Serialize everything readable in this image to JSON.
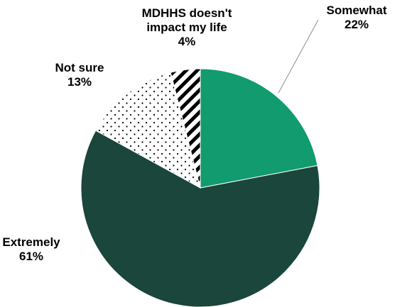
{
  "chart_data": {
    "type": "pie",
    "start_angle_deg": 0,
    "direction": "clockwise",
    "slices": [
      {
        "name": "Somewhat",
        "label": "Somewhat",
        "pct_label": "22%",
        "value": 22,
        "fill": "solid",
        "color": "#119b6e"
      },
      {
        "name": "Extremely",
        "label": "Extremely",
        "pct_label": "61%",
        "value": 61,
        "fill": "solid",
        "color": "#1a463c"
      },
      {
        "name": "Not sure",
        "label": "Not sure",
        "pct_label": "13%",
        "value": 13,
        "fill": "dots",
        "color": "#000000"
      },
      {
        "name": "MDHHS doesn't impact my life",
        "label": "MDHHS doesn't impact my life",
        "label_lines": [
          "MDHHS doesn't",
          "impact my life"
        ],
        "pct_label": "4%",
        "value": 4,
        "fill": "stripes",
        "color": "#000000"
      }
    ],
    "legend": "none"
  }
}
